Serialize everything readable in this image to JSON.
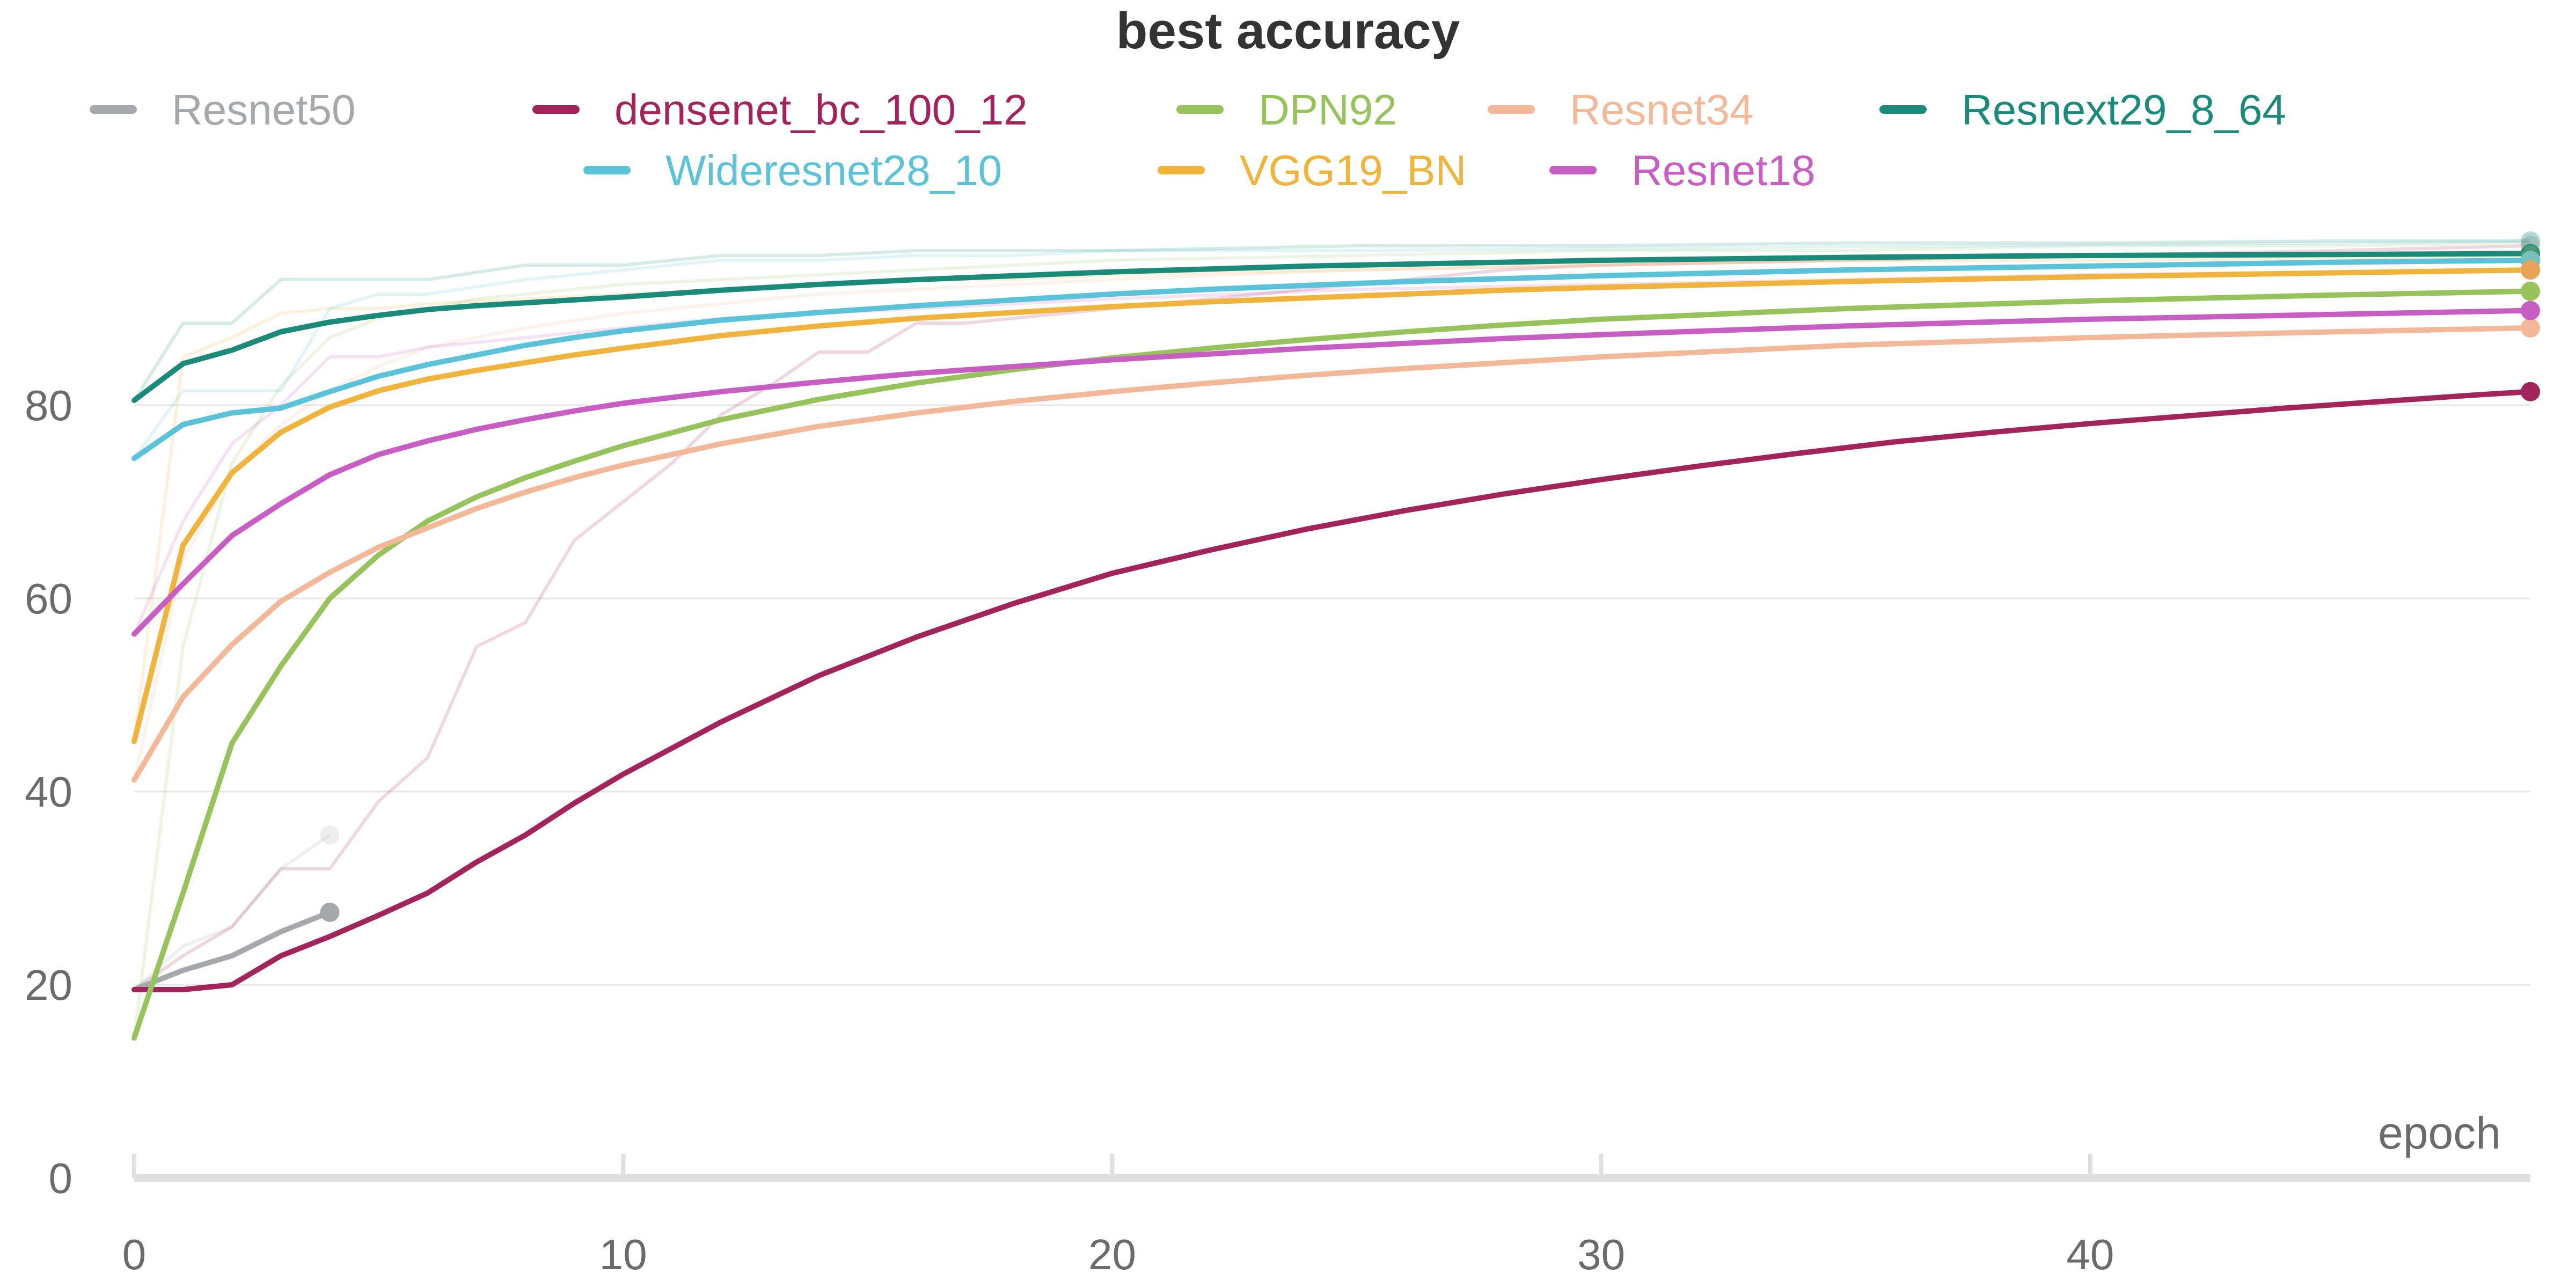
{
  "chart_data": {
    "type": "line",
    "title": "best accuracy",
    "xlabel": "epoch",
    "ylabel": "",
    "xlim": [
      0,
      49
    ],
    "ylim": [
      0,
      100
    ],
    "xticks": [
      0,
      10,
      20,
      30,
      40
    ],
    "yticks": [
      0,
      20,
      40,
      60,
      80
    ],
    "grid": "horizontal",
    "legend_position": "top",
    "series": [
      {
        "name": "Resnet50",
        "color": "#a5a9ad",
        "x": [
          0,
          1,
          2,
          3,
          4
        ],
        "y": [
          19.5,
          21.5,
          23,
          25.5,
          27.5
        ],
        "raw_x": [
          0,
          1,
          2,
          3,
          4
        ],
        "raw_y": [
          19.5,
          24,
          26,
          32,
          35.5
        ]
      },
      {
        "name": "densenet_bc_100_12",
        "color": "#a3245b",
        "x": [
          0,
          1,
          2,
          3,
          4,
          5,
          6,
          7,
          8,
          9,
          10,
          12,
          14,
          16,
          18,
          20,
          22,
          24,
          26,
          28,
          30,
          32,
          34,
          36,
          38,
          40,
          42,
          44,
          46,
          48,
          49
        ],
        "y": [
          19.5,
          19.5,
          20,
          23,
          25,
          27.2,
          29.5,
          32.7,
          35.5,
          38.8,
          41.8,
          47.2,
          52,
          56,
          59.5,
          62.6,
          65,
          67.2,
          69.1,
          70.8,
          72.3,
          73.7,
          75,
          76.2,
          77.2,
          78.1,
          78.9,
          79.7,
          80.4,
          81.1,
          81.4
        ],
        "raw_x": [
          0,
          1,
          2,
          3,
          4,
          5,
          6,
          7,
          8,
          9,
          10,
          11,
          12,
          13,
          14,
          15,
          16,
          17,
          18,
          19,
          20,
          22,
          24,
          26,
          28,
          30,
          35,
          40,
          45,
          49
        ],
        "raw_y": [
          19.5,
          23,
          26,
          32,
          32,
          39,
          43.5,
          55,
          57.5,
          66,
          70,
          74,
          79,
          82,
          85.5,
          85.5,
          88.5,
          88.5,
          89,
          89.5,
          90,
          91,
          92,
          93,
          94,
          94.5,
          95,
          95.5,
          96,
          96.5
        ]
      },
      {
        "name": "DPN92",
        "color": "#97c35c",
        "x": [
          0,
          1,
          2,
          3,
          4,
          5,
          6,
          7,
          8,
          9,
          10,
          12,
          14,
          16,
          18,
          20,
          22,
          24,
          26,
          28,
          30,
          35,
          40,
          45,
          49
        ],
        "y": [
          14.5,
          29.5,
          45,
          53,
          60,
          64.5,
          68,
          70.5,
          72.5,
          74.2,
          75.8,
          78.5,
          80.6,
          82.3,
          83.7,
          84.9,
          85.9,
          86.8,
          87.6,
          88.3,
          88.9,
          90,
          90.8,
          91.4,
          91.8
        ],
        "raw_x": [
          0,
          1,
          2,
          3,
          4,
          5,
          6,
          7,
          8,
          9,
          10,
          12,
          14,
          16,
          18,
          20,
          25,
          30,
          35,
          40,
          45,
          49
        ],
        "raw_y": [
          14.5,
          55,
          74,
          82,
          87,
          89,
          90,
          91,
          91.5,
          92,
          92.5,
          93,
          93.5,
          94,
          94.5,
          95,
          95.5,
          96,
          96,
          96.5,
          96.5,
          96.8
        ]
      },
      {
        "name": "Resnet34",
        "color": "#f2b898",
        "x": [
          0,
          1,
          2,
          3,
          4,
          5,
          6,
          7,
          8,
          9,
          10,
          12,
          14,
          16,
          18,
          20,
          22,
          24,
          26,
          28,
          30,
          35,
          40,
          45,
          49
        ],
        "y": [
          41.2,
          49.8,
          55.2,
          59.7,
          62.7,
          65.3,
          67.3,
          69.3,
          71,
          72.5,
          73.8,
          76,
          77.8,
          79.2,
          80.4,
          81.4,
          82.3,
          83.1,
          83.8,
          84.4,
          85,
          86.2,
          87,
          87.6,
          88
        ],
        "raw_x": [
          0,
          1,
          2,
          3,
          4,
          5,
          6,
          8,
          10,
          12,
          14,
          16,
          18,
          20,
          25,
          30,
          35,
          40,
          45,
          49
        ],
        "raw_y": [
          41.2,
          64,
          73,
          78,
          81.5,
          84,
          86,
          88,
          89.5,
          90.5,
          91.5,
          92,
          92.5,
          93,
          94,
          94.5,
          95,
          95.5,
          95.8,
          96
        ]
      },
      {
        "name": "Resnext29_8_64",
        "color": "#1a8a7a",
        "x": [
          0,
          1,
          2,
          3,
          4,
          5,
          6,
          7,
          8,
          9,
          10,
          12,
          14,
          16,
          18,
          20,
          22,
          24,
          26,
          28,
          30,
          35,
          40,
          45,
          49
        ],
        "y": [
          80.5,
          84.3,
          85.7,
          87.6,
          88.6,
          89.3,
          89.9,
          90.3,
          90.6,
          90.9,
          91.2,
          91.9,
          92.5,
          93,
          93.4,
          93.8,
          94.1,
          94.4,
          94.6,
          94.8,
          95,
          95.3,
          95.5,
          95.6,
          95.7
        ],
        "raw_x": [
          0,
          1,
          2,
          3,
          4,
          5,
          6,
          8,
          10,
          12,
          14,
          16,
          18,
          20,
          25,
          30,
          35,
          40,
          45,
          49
        ],
        "raw_y": [
          80.5,
          88.5,
          88.5,
          93,
          93,
          93,
          93,
          94.5,
          94.5,
          95.5,
          95.5,
          96,
          96,
          96,
          96.5,
          96.5,
          96.8,
          96.8,
          97,
          97
        ]
      },
      {
        "name": "Wideresnet28_10",
        "color": "#5bc3d9",
        "x": [
          0,
          1,
          2,
          3,
          4,
          5,
          6,
          7,
          8,
          9,
          10,
          12,
          14,
          16,
          18,
          20,
          22,
          24,
          26,
          28,
          30,
          35,
          40,
          45,
          49
        ],
        "y": [
          74.5,
          78,
          79.2,
          79.7,
          81.4,
          83,
          84.2,
          85.2,
          86.2,
          87,
          87.7,
          88.8,
          89.6,
          90.3,
          90.9,
          91.5,
          92,
          92.4,
          92.8,
          93.1,
          93.4,
          94,
          94.4,
          94.8,
          95
        ],
        "raw_x": [
          0,
          1,
          2,
          3,
          4,
          5,
          6,
          8,
          10,
          12,
          14,
          16,
          18,
          20,
          25,
          30,
          35,
          40,
          45,
          49
        ],
        "raw_y": [
          74.5,
          81.5,
          81.5,
          81.5,
          90,
          91.5,
          91.5,
          93,
          94,
          95,
          95,
          95.5,
          95.5,
          96,
          96,
          96.2,
          96.4,
          96.6,
          96.8,
          97
        ]
      },
      {
        "name": "VGG19_BN",
        "color": "#f0b43c",
        "x": [
          0,
          1,
          2,
          3,
          4,
          5,
          6,
          7,
          8,
          9,
          10,
          12,
          14,
          16,
          18,
          20,
          22,
          24,
          26,
          28,
          30,
          35,
          40,
          45,
          49
        ],
        "y": [
          45.2,
          65.5,
          73,
          77.2,
          79.8,
          81.5,
          82.7,
          83.6,
          84.4,
          85.2,
          85.9,
          87.2,
          88.2,
          89,
          89.6,
          90.2,
          90.7,
          91.1,
          91.5,
          91.9,
          92.2,
          92.8,
          93.3,
          93.7,
          94
        ],
        "raw_x": [
          0,
          1,
          2,
          3,
          4,
          5,
          6,
          8,
          10,
          12,
          14,
          16,
          18,
          20,
          25,
          30,
          35,
          40,
          45,
          49
        ],
        "raw_y": [
          45.2,
          85,
          87,
          89.5,
          90,
          90,
          90.5,
          91,
          91.5,
          92,
          92.5,
          93,
          93,
          93.5,
          94,
          94.5,
          95,
          95,
          95.2,
          95.5
        ]
      },
      {
        "name": "Resnet18",
        "color": "#c85dc4",
        "x": [
          0,
          1,
          2,
          3,
          4,
          5,
          6,
          7,
          8,
          9,
          10,
          12,
          14,
          16,
          18,
          20,
          22,
          24,
          26,
          28,
          30,
          35,
          40,
          45,
          49
        ],
        "y": [
          56.3,
          61.5,
          66.5,
          69.8,
          72.8,
          74.9,
          76.3,
          77.5,
          78.5,
          79.4,
          80.2,
          81.4,
          82.4,
          83.3,
          84,
          84.7,
          85.3,
          85.9,
          86.4,
          86.9,
          87.3,
          88.2,
          88.9,
          89.4,
          89.8
        ],
        "raw_x": [
          0,
          1,
          2,
          3,
          4,
          5,
          6,
          8,
          10,
          12,
          14,
          16,
          18,
          20,
          25,
          30,
          35,
          40,
          45,
          49
        ],
        "raw_y": [
          56.3,
          68,
          76,
          80,
          85,
          85,
          86,
          87,
          88,
          89,
          89.5,
          90,
          90.5,
          91,
          92,
          92.5,
          93,
          93.5,
          93.8,
          94
        ]
      }
    ]
  }
}
